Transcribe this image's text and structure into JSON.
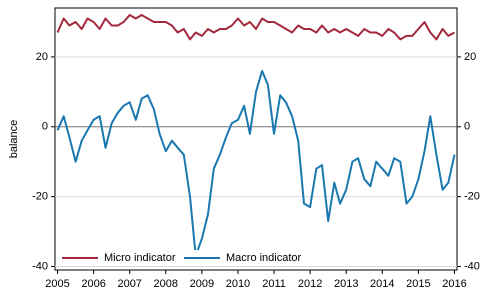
{
  "chart_data": {
    "type": "line",
    "y_label": "balance",
    "x": [
      2005,
      2005.17,
      2005.33,
      2005.5,
      2005.67,
      2005.83,
      2006,
      2006.17,
      2006.33,
      2006.5,
      2006.67,
      2006.83,
      2007,
      2007.17,
      2007.33,
      2007.5,
      2007.67,
      2007.83,
      2008,
      2008.17,
      2008.33,
      2008.5,
      2008.67,
      2008.83,
      2009,
      2009.17,
      2009.33,
      2009.5,
      2009.67,
      2009.83,
      2010,
      2010.17,
      2010.33,
      2010.5,
      2010.67,
      2010.83,
      2011,
      2011.17,
      2011.33,
      2011.5,
      2011.67,
      2011.83,
      2012,
      2012.17,
      2012.33,
      2012.5,
      2012.67,
      2012.83,
      2013,
      2013.17,
      2013.33,
      2013.5,
      2013.67,
      2013.83,
      2014,
      2014.17,
      2014.33,
      2014.5,
      2014.67,
      2014.83,
      2015,
      2015.17,
      2015.33,
      2015.5,
      2015.67,
      2015.83,
      2016
    ],
    "series": [
      {
        "name": "Micro indicator",
        "color": "#a3293c",
        "values": [
          27,
          31,
          29,
          30,
          28,
          31,
          30,
          28,
          31,
          29,
          29,
          30,
          32,
          31,
          32,
          31,
          30,
          30,
          30,
          29,
          27,
          28,
          25,
          27,
          26,
          28,
          27,
          28,
          28,
          29,
          31,
          29,
          30,
          28,
          31,
          30,
          30,
          29,
          28,
          27,
          29,
          28,
          28,
          27,
          29,
          27,
          28,
          27,
          28,
          27,
          26,
          28,
          27,
          27,
          26,
          28,
          27,
          25,
          26,
          26,
          28,
          30,
          27,
          25,
          28,
          26,
          27
        ]
      },
      {
        "name": "Macro indicator",
        "color": "#1a78b0",
        "values": [
          -1,
          3,
          -3,
          -10,
          -4,
          -1,
          2,
          3,
          -6,
          1,
          4,
          6,
          7,
          2,
          8,
          9,
          5,
          -2,
          -7,
          -4,
          -6,
          -8,
          -20,
          -37,
          -32,
          -25,
          -12,
          -8,
          -3,
          1,
          2,
          6,
          -2,
          10,
          16,
          12,
          -2,
          9,
          7,
          3,
          -4,
          -22,
          -23,
          -12,
          -11,
          -27,
          -16,
          -22,
          -18,
          -10,
          -9,
          -15,
          -17,
          -10,
          -12,
          -14,
          -9,
          -10,
          -22,
          -20,
          -15,
          -7,
          3,
          -8,
          -18,
          -16,
          -8
        ]
      }
    ],
    "xlim": [
      2004.93,
      2016.07
    ],
    "xticks": [
      2005,
      2006,
      2007,
      2008,
      2009,
      2010,
      2011,
      2012,
      2013,
      2014,
      2015,
      2016
    ],
    "ylim": [
      -41,
      34
    ],
    "yticks": [
      -40,
      -20,
      0,
      20
    ],
    "grid": true,
    "legend": "bottom-left"
  }
}
